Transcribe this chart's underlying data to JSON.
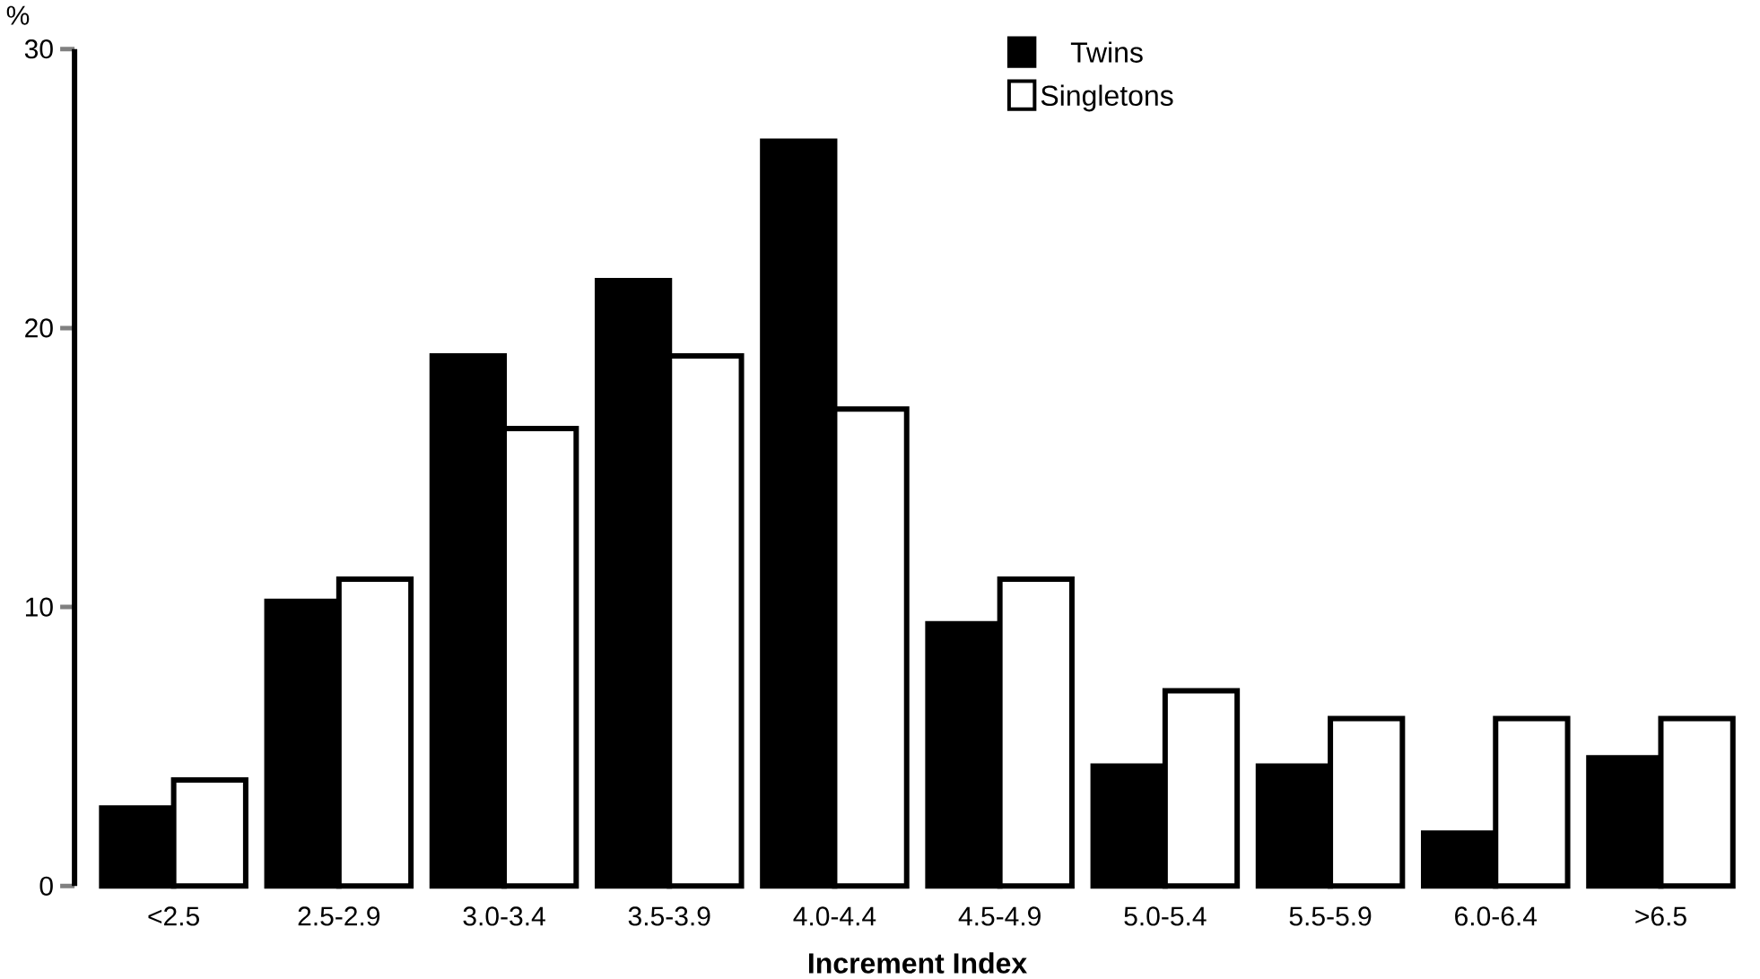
{
  "chart_data": {
    "type": "bar",
    "xlabel": "Increment Index",
    "ylabel": "%",
    "categories": [
      "<2.5",
      "2.5-2.9",
      "3.0-3.4",
      "3.5-3.9",
      "4.0-4.4",
      "4.5-4.9",
      "5.0-5.4",
      "5.5-5.9",
      "6.0-6.4",
      ">6.5"
    ],
    "series": [
      {
        "name": "Twins",
        "color": "#000000",
        "values": [
          2.8,
          10.2,
          19.0,
          21.7,
          26.7,
          9.4,
          4.3,
          4.3,
          1.9,
          4.6
        ]
      },
      {
        "name": "Singletons",
        "color": "#ffffff",
        "values": [
          3.8,
          11.0,
          16.4,
          19.0,
          17.1,
          11.0,
          7.0,
          6.0,
          6.0,
          6.0
        ]
      }
    ],
    "ylim": [
      0,
      30
    ],
    "yticks": [
      0,
      10,
      20,
      30
    ],
    "grid": false,
    "legend": "top"
  }
}
